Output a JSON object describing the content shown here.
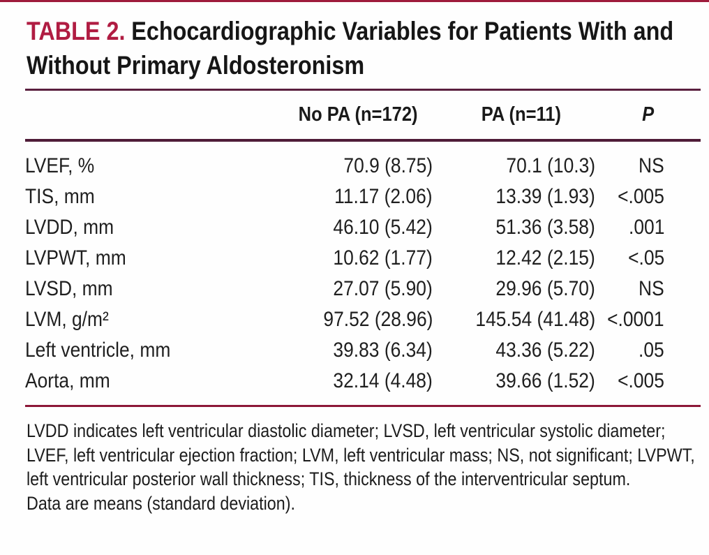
{
  "colors": {
    "accent": "#B01C42",
    "rule_dark": "#5A1F3E",
    "rule_bottom": "#8C1838",
    "text": "#1F1F1F"
  },
  "title": {
    "label": "TABLE 2.",
    "text": "Echocardiographic Variables for Patients With and Without Primary Aldosteronism"
  },
  "table": {
    "header": {
      "no_pa": "No PA (n=172)",
      "pa": "PA (n=11)",
      "p": "P"
    },
    "rows": [
      {
        "label": "LVEF, %",
        "no_pa": "70.9 (8.75)",
        "pa": "70.1 (10.3)",
        "p": "NS"
      },
      {
        "label": "TIS, mm",
        "no_pa": "11.17 (2.06)",
        "pa": "13.39 (1.93)",
        "p": "<.005"
      },
      {
        "label": "LVDD, mm",
        "no_pa": "46.10 (5.42)",
        "pa": "51.36 (3.58)",
        "p": ".001"
      },
      {
        "label": "LVPWT, mm",
        "no_pa": "10.62 (1.77)",
        "pa": "12.42 (2.15)",
        "p": "<.05"
      },
      {
        "label": "LVSD, mm",
        "no_pa": "27.07 (5.90)",
        "pa": "29.96 (5.70)",
        "p": "NS"
      },
      {
        "label": "LVM, g/m²",
        "no_pa": "97.52 (28.96)",
        "pa": "145.54 (41.48)",
        "p": "<.0001"
      },
      {
        "label": "Left ventricle, mm",
        "no_pa": "39.83 (6.34)",
        "pa": "43.36 (5.22)",
        "p": ".05"
      },
      {
        "label": "Aorta, mm",
        "no_pa": "32.14 (4.48)",
        "pa": "39.66 (1.52)",
        "p": "<.005"
      }
    ]
  },
  "footnotes": {
    "abbreviations": "LVDD indicates left ventricular diastolic diameter; LVSD, left ventricular systolic diameter; LVEF, left ventricular ejection fraction; LVM, left ventricular mass; NS, not significant; LVPWT, left ventricular posterior wall thickness; TIS, thickness of the interventricular septum.",
    "data_note": "Data are means (standard deviation)."
  }
}
